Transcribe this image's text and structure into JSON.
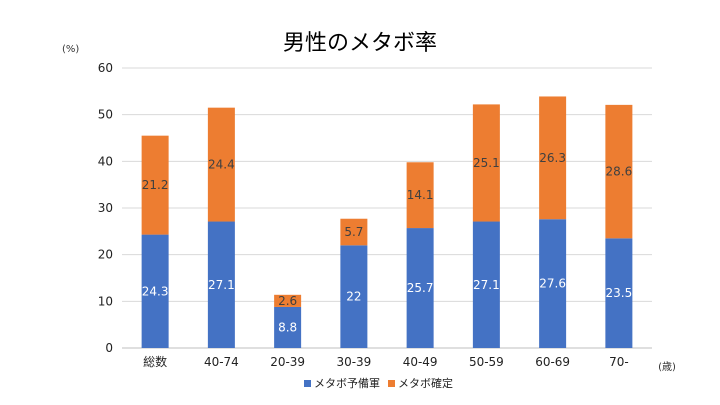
{
  "chart_data": {
    "type": "bar",
    "stacked": true,
    "title": "男性のメタボ率",
    "ylabel": "(%)",
    "xlabel": "(歳)",
    "ylim": [
      0,
      60
    ],
    "yticks": [
      0,
      10,
      20,
      30,
      40,
      50,
      60
    ],
    "grid": true,
    "legend_position": "bottom",
    "categories": [
      "総数",
      "40-74",
      "20-39",
      "30-39",
      "40-49",
      "50-59",
      "60-69",
      "70-"
    ],
    "series": [
      {
        "name": "メタボ予備軍",
        "color": "#4472C4",
        "values": [
          24.3,
          27.1,
          8.8,
          22,
          25.7,
          27.1,
          27.6,
          23.5
        ],
        "labels": [
          "24.3",
          "27.1",
          "8.8",
          "22",
          "25.7",
          "27.1",
          "27.6",
          "23.5"
        ],
        "label_color": "#ffffff"
      },
      {
        "name": "メタボ確定",
        "color": "#ED7D31",
        "values": [
          21.2,
          24.4,
          2.6,
          5.7,
          14.1,
          25.1,
          26.3,
          28.6
        ],
        "labels": [
          "21.2",
          "24.4",
          "2.6",
          "5.7",
          "14.1",
          "25.1",
          "26.3",
          "28.6"
        ],
        "label_color": "#404040"
      }
    ]
  }
}
